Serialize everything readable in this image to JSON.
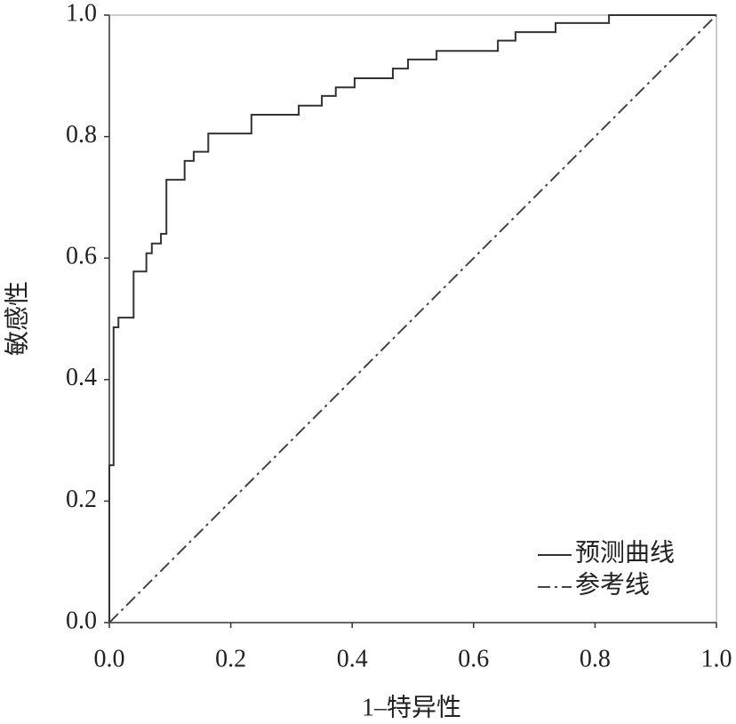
{
  "chart_data": {
    "type": "line",
    "xlabel": "1–特异性",
    "ylabel": "敏感性",
    "xlim": [
      0,
      1
    ],
    "ylim": [
      0,
      1
    ],
    "xticks": [
      {
        "value": 0,
        "label": "0.0"
      },
      0.2,
      0.4,
      0.6,
      0.8,
      {
        "value": 1,
        "label": "1.0"
      }
    ],
    "yticks": [
      {
        "value": 0,
        "label": "0.0"
      },
      0.2,
      0.4,
      0.6,
      0.8,
      {
        "value": 1,
        "label": "1.0"
      }
    ],
    "legend": "lower right",
    "series": [
      {
        "name": "预测曲线",
        "color": "#333333",
        "style": "solid",
        "step": true,
        "x": [
          0,
          0,
          0.007,
          0.007,
          0.015,
          0.015,
          0.04,
          0.04,
          0.061,
          0.061,
          0.07,
          0.07,
          0.085,
          0.085,
          0.094,
          0.094,
          0.124,
          0.124,
          0.139,
          0.139,
          0.163,
          0.163,
          0.234,
          0.234,
          0.312,
          0.312,
          0.35,
          0.35,
          0.373,
          0.373,
          0.404,
          0.404,
          0.467,
          0.467,
          0.492,
          0.492,
          0.539,
          0.539,
          0.64,
          0.64,
          0.669,
          0.669,
          0.735,
          0.735,
          0.823,
          0.823,
          1
        ],
        "values": [
          0,
          0.259,
          0.259,
          0.486,
          0.486,
          0.502,
          0.502,
          0.578,
          0.578,
          0.608,
          0.608,
          0.624,
          0.624,
          0.64,
          0.64,
          0.729,
          0.729,
          0.76,
          0.76,
          0.775,
          0.775,
          0.805,
          0.805,
          0.836,
          0.836,
          0.851,
          0.851,
          0.867,
          0.867,
          0.881,
          0.881,
          0.896,
          0.896,
          0.912,
          0.912,
          0.927,
          0.927,
          0.941,
          0.941,
          0.958,
          0.958,
          0.972,
          0.972,
          0.987,
          0.987,
          1,
          1
        ]
      },
      {
        "name": "参考线",
        "color": "#444444",
        "style": "dashdot",
        "x": [
          0,
          1
        ],
        "values": [
          0,
          1
        ]
      }
    ]
  }
}
